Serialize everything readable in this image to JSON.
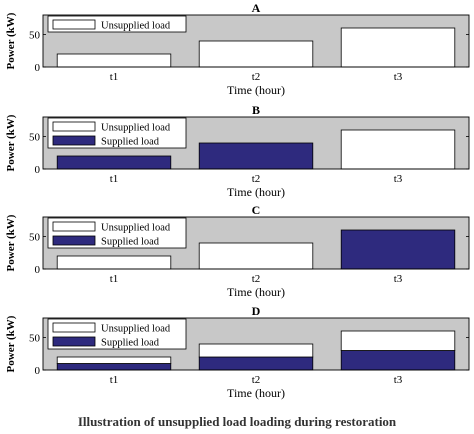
{
  "caption": "Illustration of unsupplied load loading during restoration",
  "colors": {
    "plot_bg": "#c8c8c8",
    "unsupplied": "#ffffff",
    "supplied": "#2e2a7e",
    "frame": "#000000"
  },
  "chart_data": [
    {
      "type": "bar",
      "title": "A",
      "xlabel": "Time (hour)",
      "ylabel": "Power (kW)",
      "ylim": [
        0,
        80
      ],
      "yticks": [
        0,
        50
      ],
      "categories": [
        "t1",
        "t2",
        "t3"
      ],
      "stacked": true,
      "legend_position": "top-left",
      "series": [
        {
          "name": "Unsupplied load",
          "color": "#ffffff",
          "values": [
            20,
            40,
            60
          ]
        }
      ]
    },
    {
      "type": "bar",
      "title": "B",
      "xlabel": "Time (hour)",
      "ylabel": "Power (kW)",
      "ylim": [
        0,
        80
      ],
      "yticks": [
        0,
        50
      ],
      "categories": [
        "t1",
        "t2",
        "t3"
      ],
      "stacked": true,
      "legend_position": "top-left",
      "series": [
        {
          "name": "Supplied load",
          "color": "#2e2a7e",
          "values": [
            20,
            40,
            0
          ]
        },
        {
          "name": "Unsupplied load",
          "color": "#ffffff",
          "values": [
            0,
            0,
            60
          ]
        }
      ]
    },
    {
      "type": "bar",
      "title": "C",
      "xlabel": "Time (hour)",
      "ylabel": "Power (kW)",
      "ylim": [
        0,
        80
      ],
      "yticks": [
        0,
        50
      ],
      "categories": [
        "t1",
        "t2",
        "t3"
      ],
      "stacked": true,
      "legend_position": "top-left",
      "series": [
        {
          "name": "Supplied load",
          "color": "#2e2a7e",
          "values": [
            0,
            0,
            60
          ]
        },
        {
          "name": "Unsupplied load",
          "color": "#ffffff",
          "values": [
            20,
            40,
            0
          ]
        }
      ]
    },
    {
      "type": "bar",
      "title": "D",
      "xlabel": "Time (hour)",
      "ylabel": "Power (kW)",
      "ylim": [
        0,
        80
      ],
      "yticks": [
        0,
        50
      ],
      "categories": [
        "t1",
        "t2",
        "t3"
      ],
      "stacked": true,
      "legend_position": "top-left",
      "series": [
        {
          "name": "Supplied load",
          "color": "#2e2a7e",
          "values": [
            10,
            20,
            30
          ]
        },
        {
          "name": "Unsupplied load",
          "color": "#ffffff",
          "values": [
            10,
            20,
            30
          ]
        }
      ]
    }
  ]
}
